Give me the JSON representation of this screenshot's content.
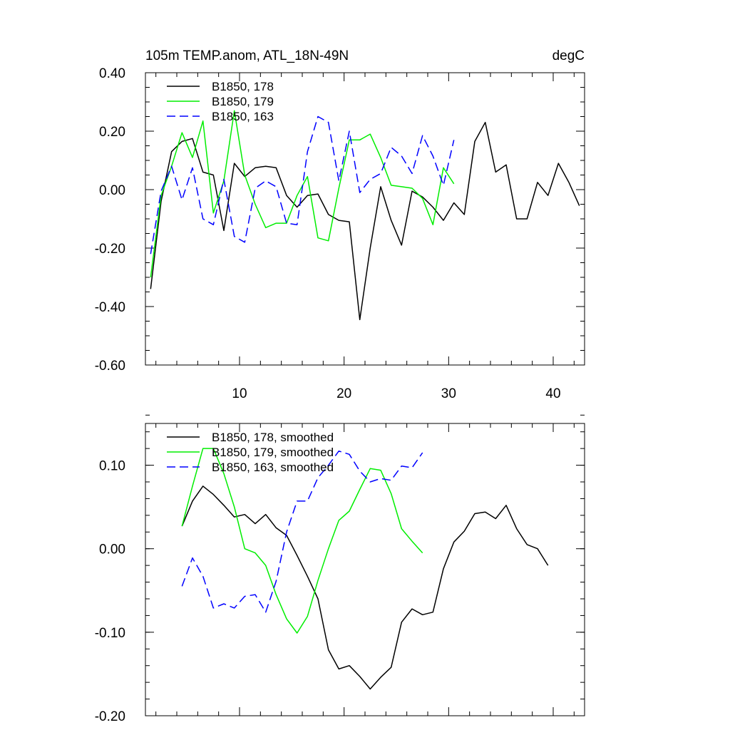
{
  "chart_data": [
    {
      "type": "line",
      "title": "105m TEMP.anom, ATL_18N-49N",
      "units": "degC",
      "xlim": [
        1,
        43
      ],
      "ylim": [
        -0.6,
        0.4
      ],
      "xticks": [
        10,
        20,
        30,
        40
      ],
      "xtick_labels": [
        "10",
        "20",
        "30",
        "40"
      ],
      "yticks": [
        -0.6,
        -0.4,
        -0.2,
        0.0,
        0.2,
        0.4
      ],
      "ytick_labels": [
        "-0.60",
        "-0.40",
        "-0.20",
        "0.00",
        "0.20",
        "0.40"
      ],
      "legend_position": "top-left",
      "series": [
        {
          "name": "B1850, 178",
          "color": "#000000",
          "dash": "solid",
          "x": [
            1.5,
            2.5,
            3.5,
            4.5,
            5.5,
            6.5,
            7.5,
            8.5,
            9.5,
            10.5,
            11.5,
            12.5,
            13.5,
            14.5,
            15.5,
            16.5,
            17.5,
            18.5,
            19.5,
            20.5,
            21.5,
            22.5,
            23.5,
            24.5,
            25.5,
            26.5,
            27.5,
            28.5,
            29.5,
            30.5,
            31.5,
            32.5,
            33.5,
            34.5,
            35.5,
            36.5,
            37.5,
            38.5,
            39.5,
            40.5,
            41.5,
            42.5
          ],
          "values": [
            -0.34,
            -0.04,
            0.13,
            0.165,
            0.175,
            0.06,
            0.05,
            -0.14,
            0.09,
            0.045,
            0.075,
            0.08,
            0.075,
            -0.02,
            -0.06,
            -0.02,
            -0.015,
            -0.085,
            -0.105,
            -0.11,
            -0.445,
            -0.2,
            0.01,
            -0.105,
            -0.19,
            -0.005,
            -0.025,
            -0.06,
            -0.105,
            -0.045,
            -0.085,
            0.165,
            0.23,
            0.06,
            0.085,
            -0.1,
            -0.1,
            0.025,
            -0.02,
            0.09,
            0.025,
            -0.055
          ]
        },
        {
          "name": "B1850, 179",
          "color": "#00ee00",
          "dash": "solid",
          "x": [
            1.5,
            2.5,
            3.5,
            4.5,
            5.5,
            6.5,
            7.5,
            8.5,
            9.5,
            10.5,
            11.5,
            12.5,
            13.5,
            14.5,
            15.5,
            16.5,
            17.5,
            18.5,
            19.5,
            20.5,
            21.5,
            22.5,
            23.5,
            24.5,
            25.5,
            26.5,
            27.5,
            28.5,
            29.5,
            30.5
          ],
          "values": [
            -0.3,
            -0.02,
            0.08,
            0.195,
            0.11,
            0.235,
            -0.08,
            0.03,
            0.27,
            0.05,
            -0.05,
            -0.13,
            -0.115,
            -0.115,
            -0.02,
            0.045,
            -0.165,
            -0.175,
            0.005,
            0.17,
            0.17,
            0.19,
            0.11,
            0.015,
            0.01,
            0.005,
            -0.03,
            -0.12,
            0.075,
            0.02
          ]
        },
        {
          "name": "B1850, 163",
          "color": "#0000ff",
          "dash": "dashed",
          "x": [
            1.5,
            2.5,
            3.5,
            4.5,
            5.5,
            6.5,
            7.5,
            8.5,
            9.5,
            10.5,
            11.5,
            12.5,
            13.5,
            14.5,
            15.5,
            16.5,
            17.5,
            18.5,
            19.5,
            20.5,
            21.5,
            22.5,
            23.5,
            24.5,
            25.5,
            26.5,
            27.5,
            28.5,
            29.5,
            30.5
          ],
          "values": [
            -0.22,
            -0.005,
            0.08,
            -0.035,
            0.075,
            -0.1,
            -0.12,
            0.035,
            -0.16,
            -0.18,
            0.005,
            0.03,
            0.01,
            -0.115,
            -0.12,
            0.13,
            0.25,
            0.23,
            0.03,
            0.2,
            -0.01,
            0.035,
            0.055,
            0.145,
            0.115,
            0.055,
            0.185,
            0.115,
            0.015,
            0.17
          ]
        }
      ]
    },
    {
      "type": "line",
      "title": "",
      "xlim": [
        1,
        43
      ],
      "ylim": [
        -0.2,
        0.15
      ],
      "xticks": [
        10,
        20,
        30,
        40
      ],
      "yticks": [
        -0.2,
        -0.1,
        0.0,
        0.1
      ],
      "ytick_labels": [
        "-0.20",
        "-0.10",
        "0.00",
        "0.10"
      ],
      "legend_position": "top-left",
      "series": [
        {
          "name": "B1850, 178, smoothed",
          "color": "#000000",
          "dash": "solid",
          "x": [
            4.5,
            5.5,
            6.5,
            7.5,
            8.5,
            9.5,
            10.5,
            11.5,
            12.5,
            13.5,
            14.5,
            15.5,
            16.5,
            17.5,
            18.5,
            19.5,
            20.5,
            21.5,
            22.5,
            23.5,
            24.5,
            25.5,
            26.5,
            27.5,
            28.5,
            29.5,
            30.5,
            31.5,
            32.5,
            33.5,
            34.5,
            35.5,
            36.5,
            37.5,
            38.5,
            39.5
          ],
          "values": [
            0.027,
            0.057,
            0.075,
            0.065,
            0.052,
            0.038,
            0.041,
            0.03,
            0.041,
            0.025,
            0.016,
            -0.008,
            -0.033,
            -0.06,
            -0.121,
            -0.144,
            -0.14,
            -0.153,
            -0.168,
            -0.154,
            -0.142,
            -0.088,
            -0.072,
            -0.079,
            -0.076,
            -0.024,
            0.008,
            0.021,
            0.042,
            0.044,
            0.036,
            0.052,
            0.024,
            0.005,
            0.0,
            -0.02
          ]
        },
        {
          "name": "B1850, 179, smoothed",
          "color": "#00ee00",
          "dash": "solid",
          "x": [
            4.5,
            5.5,
            6.5,
            7.5,
            8.5,
            9.5,
            10.5,
            11.5,
            12.5,
            13.5,
            14.5,
            15.5,
            16.5,
            17.5,
            18.5,
            19.5,
            20.5,
            21.5,
            22.5,
            23.5,
            24.5,
            25.5,
            26.5,
            27.5
          ],
          "values": [
            0.027,
            0.075,
            0.12,
            0.12,
            0.09,
            0.05,
            0.0,
            -0.005,
            -0.02,
            -0.055,
            -0.084,
            -0.101,
            -0.081,
            -0.038,
            0.0,
            0.034,
            0.045,
            0.071,
            0.096,
            0.094,
            0.066,
            0.024,
            0.009,
            -0.005
          ]
        },
        {
          "name": "B1850, 163, smoothed",
          "color": "#0000ff",
          "dash": "dashed",
          "x": [
            4.5,
            5.5,
            6.5,
            7.5,
            8.5,
            9.5,
            10.5,
            11.5,
            12.5,
            13.5,
            14.5,
            15.5,
            16.5,
            17.5,
            18.5,
            19.5,
            20.5,
            21.5,
            22.5,
            23.5,
            24.5,
            25.5,
            26.5,
            27.5
          ],
          "values": [
            -0.045,
            -0.011,
            -0.033,
            -0.071,
            -0.066,
            -0.071,
            -0.057,
            -0.055,
            -0.076,
            -0.039,
            0.02,
            0.057,
            0.057,
            0.085,
            0.1,
            0.117,
            0.113,
            0.093,
            0.08,
            0.084,
            0.082,
            0.099,
            0.097,
            0.115
          ]
        }
      ]
    }
  ]
}
